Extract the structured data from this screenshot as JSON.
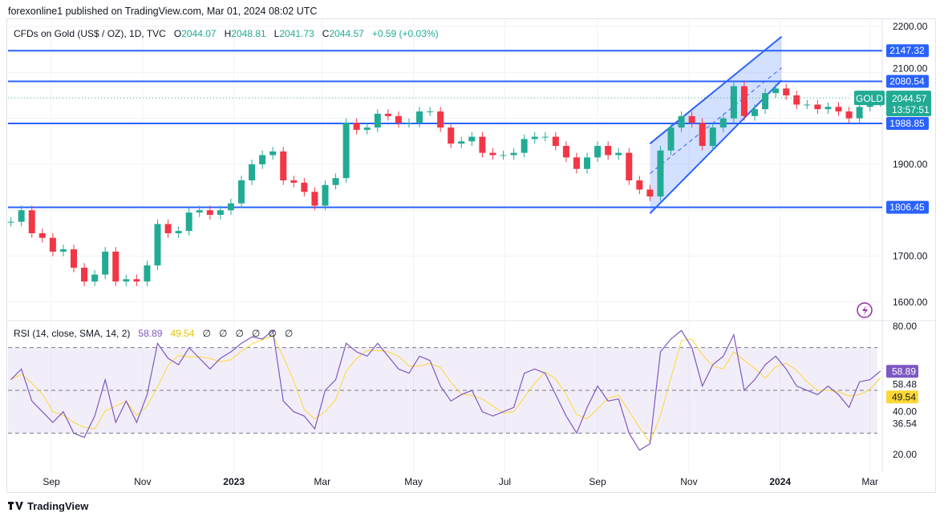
{
  "publisher_line": "forexonline1 published on TradingView.com, Mar 01, 2024 08:02 UTC",
  "legend": {
    "symbol": "CFDs on Gold (US$ / OZ), 1D, TVC",
    "open_label": "O",
    "open": "2044.07",
    "high_label": "H",
    "high": "2048.81",
    "low_label": "L",
    "low": "2041.73",
    "close_label": "C",
    "close": "2044.57",
    "change": "+0.59 (+0.03%)"
  },
  "rsi_legend": {
    "title": "RSI (14, close, SMA, 14, 2)",
    "rsi_value": "58.89",
    "sma_value": "49.54",
    "empty_values": [
      "∅",
      "∅",
      "∅",
      "∅",
      "∅",
      "∅"
    ]
  },
  "footer": {
    "brand": "TradingView"
  },
  "colors": {
    "up": "#22ab94",
    "down": "#f23645",
    "level_line": "#2962ff",
    "rsi": "#7e57c2",
    "rsi_sma": "#fdd835",
    "channel_fill": "#2962ff"
  },
  "icons": {
    "alert": "lightning-icon",
    "logo": "tradingview-logo-icon"
  },
  "chart_data": [
    {
      "type": "candlestick",
      "interval": "weekly approximation of 1D chart",
      "ylim": [
        1580,
        2220
      ],
      "y_ticks": [
        "2200.00",
        "2100.00",
        "1900.00",
        "1700.00",
        "1600.00"
      ],
      "x_ticks": [
        {
          "date": "2022-09-01",
          "label": "Sep"
        },
        {
          "date": "2022-11-01",
          "label": "Nov"
        },
        {
          "date": "2023-01-01",
          "label": "2023"
        },
        {
          "date": "2023-03-01",
          "label": "Mar"
        },
        {
          "date": "2023-05-01",
          "label": "May"
        },
        {
          "date": "2023-07-01",
          "label": "Jul"
        },
        {
          "date": "2023-09-01",
          "label": "Sep"
        },
        {
          "date": "2023-11-01",
          "label": "Nov"
        },
        {
          "date": "2024-01-01",
          "label": "2024"
        },
        {
          "date": "2024-03-01",
          "label": "Mar"
        }
      ],
      "start_date": "2022-08-05",
      "step_days": 7,
      "closes": [
        1775,
        1800,
        1750,
        1740,
        1710,
        1715,
        1675,
        1645,
        1660,
        1710,
        1645,
        1650,
        1645,
        1680,
        1770,
        1750,
        1755,
        1795,
        1800,
        1790,
        1800,
        1815,
        1865,
        1900,
        1920,
        1928,
        1865,
        1860,
        1840,
        1810,
        1855,
        1870,
        1990,
        1975,
        1980,
        2010,
        2005,
        1990,
        1990,
        2015,
        2015,
        1980,
        1945,
        1950,
        1960,
        1925,
        1920,
        1920,
        1925,
        1955,
        1960,
        1960,
        1940,
        1915,
        1890,
        1915,
        1940,
        1920,
        1925,
        1865,
        1845,
        1830,
        1930,
        1980,
        2005,
        1990,
        1940,
        1980,
        2000,
        2070,
        2005,
        2020,
        2055,
        2065,
        2050,
        2030,
        2030,
        2020,
        2025,
        2015,
        2000,
        2025,
        2035,
        2045
      ],
      "levels": [
        {
          "value": 2147.32,
          "label": "2147.32"
        },
        {
          "value": 2080.54,
          "label": "2080.54"
        },
        {
          "value": 1988.85,
          "label": "1988.85"
        },
        {
          "value": 1806.45,
          "label": "1806.45"
        }
      ],
      "last_price": {
        "symbol_label": "GOLD",
        "value": 2044.57,
        "label": "2044.57",
        "countdown": "13:57:51"
      },
      "channel": {
        "start_date": "2023-10-06",
        "end_date": "2024-01-02",
        "upper": [
          1945,
          2178
        ],
        "lower": [
          1793,
          2083
        ],
        "mid": [
          1880,
          2110
        ]
      }
    },
    {
      "type": "line",
      "name": "RSI (14, close, SMA, 14, 2)",
      "ylim": [
        15,
        85
      ],
      "y_ticks": [
        "80.00",
        "40.00",
        "20.00"
      ],
      "extra_labels": [
        "58.48",
        "36.54"
      ],
      "bands": {
        "upper": 70,
        "middle": 50,
        "lower": 30
      },
      "rsi_last": {
        "value": 58.89,
        "label": "58.89"
      },
      "sma_last": {
        "value": 49.54,
        "label": "49.54"
      },
      "rsi": [
        55,
        60,
        45,
        40,
        35,
        40,
        30,
        28,
        38,
        55,
        35,
        45,
        35,
        48,
        72,
        65,
        62,
        70,
        65,
        60,
        65,
        68,
        72,
        75,
        74,
        78,
        45,
        40,
        38,
        32,
        50,
        55,
        72,
        68,
        66,
        72,
        66,
        60,
        58,
        66,
        64,
        52,
        45,
        48,
        50,
        40,
        38,
        40,
        42,
        58,
        60,
        58,
        48,
        38,
        30,
        42,
        52,
        45,
        46,
        30,
        22,
        25,
        68,
        74,
        78,
        70,
        52,
        62,
        66,
        76,
        50,
        55,
        62,
        66,
        60,
        52,
        50,
        48,
        52,
        48,
        42,
        54,
        55,
        59
      ]
    }
  ]
}
